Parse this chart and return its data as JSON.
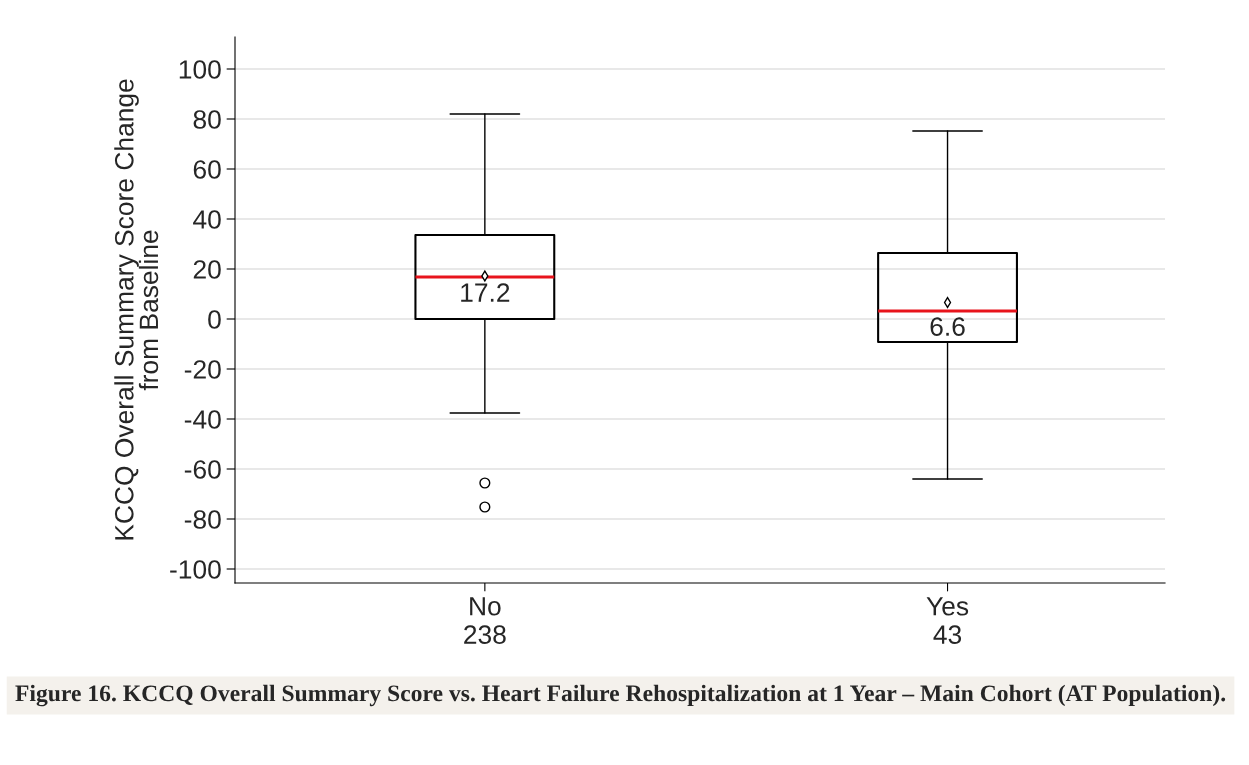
{
  "chart_data": {
    "type": "box",
    "ylabel": "KCCQ Overall Summary Score Change\nfrom Baseline",
    "categories": [
      "No\n238",
      "Yes\n43"
    ],
    "boxes": [
      {
        "low": -37.6,
        "q1": 0,
        "median": 16.8,
        "q3": 33.6,
        "high": 82,
        "mean": 17.2,
        "outliers": [
          -65.6,
          -75.2
        ]
      },
      {
        "low": -64,
        "q1": -9.2,
        "median": 3.2,
        "q3": 26.4,
        "high": 75.2,
        "mean": 6.6
      }
    ],
    "color": "#000000",
    "ylim": [
      -105.6,
      112.8
    ],
    "yticks": [
      -100,
      -80,
      -60,
      -40,
      -20,
      0,
      20,
      40,
      60,
      80,
      100
    ],
    "grid": "y",
    "annotations": [
      "17.2",
      "6.6",
      "Figure 16. KCCQ Overall Summary Score vs. Heart Failure Rehospitalization at 1 Year – Main Cohort (AT Population)."
    ]
  }
}
